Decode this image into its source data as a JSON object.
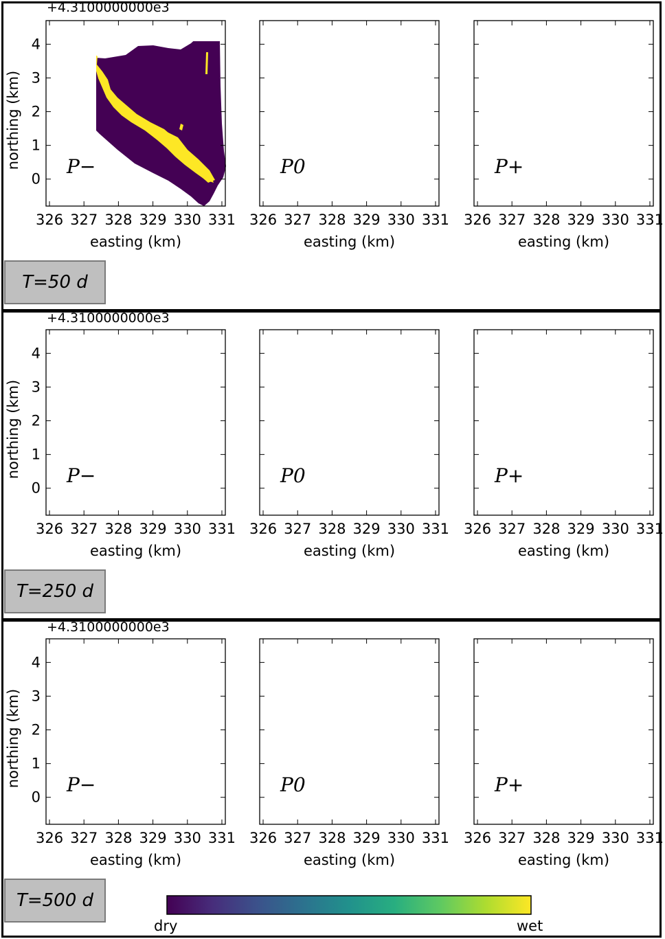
{
  "figure": {
    "offset_text": "+4.3100000000e3",
    "xlabel": "easting (km)",
    "ylabel": "northing (km)",
    "xticks": [
      "326",
      "327",
      "328",
      "329",
      "330",
      "331"
    ],
    "yticks": [
      "0",
      "1",
      "2",
      "3",
      "4"
    ],
    "scenario_labels": [
      "P−",
      "P0",
      "P+"
    ],
    "time_labels": [
      "T=50 d",
      "T=250 d",
      "T=500 d"
    ],
    "colorbar": {
      "min_label": "dry",
      "max_label": "wet",
      "colormap": "viridis"
    },
    "colors": {
      "dry": "#440154",
      "wet": "#fde725",
      "label_box": "#bfbfbf"
    }
  },
  "chart_data": {
    "type": "heatmap",
    "description_units": "map grid of wet/dry state",
    "xlim": [
      325.9,
      331.1
    ],
    "ylim": [
      -0.8,
      4.7
    ],
    "x_offset_km": 4310,
    "rows": [
      {
        "time": "T=50 d",
        "panels": [
          "P−",
          "P0",
          "P+"
        ]
      },
      {
        "time": "T=250 d",
        "panels": [
          "P−",
          "P0",
          "P+"
        ]
      },
      {
        "time": "T=500 d",
        "panels": [
          "P−",
          "P0",
          "P+"
        ]
      }
    ],
    "values": {
      "dry": 0,
      "wet": 1
    }
  }
}
